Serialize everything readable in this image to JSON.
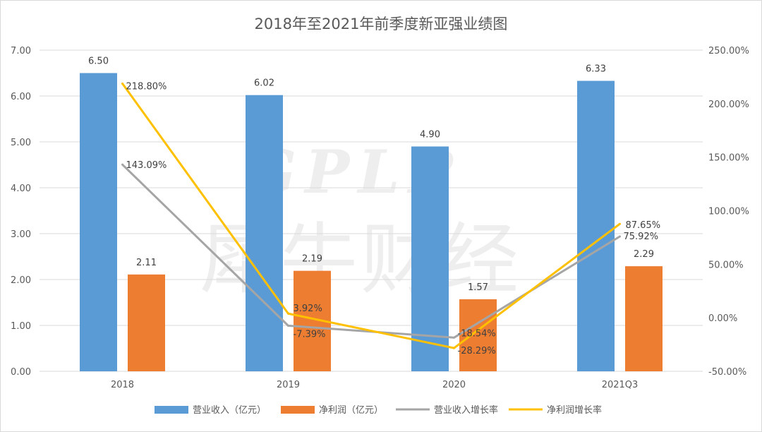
{
  "chart_data": {
    "type": "bar",
    "title": "2018年至2021年前季度新亚强业绩图",
    "categories": [
      "2018",
      "2019",
      "2020",
      "2021Q3"
    ],
    "series": [
      {
        "name": "营业收入（亿元）",
        "kind": "bar",
        "axis": "left",
        "color": "#5b9bd5",
        "values": [
          6.5,
          6.02,
          4.9,
          6.33
        ],
        "labels": [
          "6.50",
          "6.02",
          "4.90",
          "6.33"
        ]
      },
      {
        "name": "净利润（亿元）",
        "kind": "bar",
        "axis": "left",
        "color": "#ed7d31",
        "values": [
          2.11,
          2.19,
          1.57,
          2.29
        ],
        "labels": [
          "2.11",
          "2.19",
          "1.57",
          "2.29"
        ]
      },
      {
        "name": "营业收入增长率",
        "kind": "line",
        "axis": "right",
        "color": "#a5a5a5",
        "values": [
          143.09,
          -7.39,
          -18.54,
          75.92
        ],
        "labels": [
          "143.09%",
          "-7.39%",
          "-18.54%",
          "75.92%"
        ]
      },
      {
        "name": "净利润增长率",
        "kind": "line",
        "axis": "right",
        "color": "#ffc000",
        "values": [
          218.8,
          3.92,
          -28.29,
          87.65
        ],
        "labels": [
          "218.80%",
          "3.92%",
          "-28.29%",
          "87.65%"
        ]
      }
    ],
    "left_axis": {
      "min": 0,
      "max": 7,
      "step": 1,
      "tick_labels": [
        "0.00",
        "1.00",
        "2.00",
        "3.00",
        "4.00",
        "5.00",
        "6.00",
        "7.00"
      ]
    },
    "right_axis": {
      "min": -50,
      "max": 250,
      "step": 50,
      "tick_labels": [
        "-50.00%",
        "0.00%",
        "50.00%",
        "100.00%",
        "150.00%",
        "200.00%",
        "250.00%"
      ]
    },
    "grid": true,
    "legend_position": "bottom"
  },
  "watermark": {
    "latin": "GPLP",
    "chinese": "犀牛财经"
  }
}
